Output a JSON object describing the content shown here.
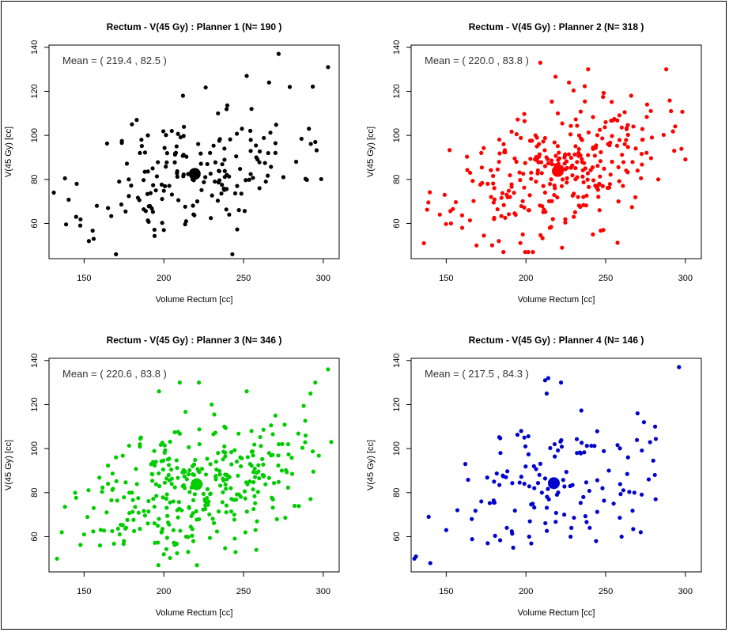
{
  "chart_data": [
    {
      "type": "scatter",
      "title": "Rectum - V(45 Gy) : Planner  1  (N= 190 )",
      "xlabel": "Volume Rectum [cc]",
      "ylabel": "V(45 Gy) [cc]",
      "xlim": [
        128,
        310
      ],
      "ylim": [
        44,
        141
      ],
      "xticks": [
        150,
        200,
        250,
        300
      ],
      "yticks": [
        60,
        80,
        100,
        120,
        140
      ],
      "grid": false,
      "color": "#000000",
      "mean_label": "Mean = ( 219.4  ,  82.5 )",
      "mean": [
        219.4,
        82.5
      ],
      "seed": 11,
      "n_points": 190,
      "points": [
        [
          131,
          74
        ],
        [
          145,
          63
        ],
        [
          153,
          52
        ],
        [
          156,
          53
        ],
        [
          158,
          68
        ],
        [
          165,
          67
        ],
        [
          170,
          46
        ],
        [
          172,
          79
        ],
        [
          178,
          80
        ],
        [
          180,
          105
        ],
        [
          183,
          107
        ],
        [
          185,
          92
        ],
        [
          190,
          100
        ],
        [
          193,
          85
        ],
        [
          195,
          75
        ],
        [
          200,
          57
        ],
        [
          205,
          102
        ],
        [
          208,
          95
        ],
        [
          212,
          118
        ],
        [
          214,
          61
        ],
        [
          218,
          80
        ],
        [
          221,
          70
        ],
        [
          226,
          81
        ],
        [
          229,
          92
        ],
        [
          232,
          79
        ],
        [
          234,
          110
        ],
        [
          238,
          94
        ],
        [
          241,
          64
        ],
        [
          243,
          46
        ],
        [
          246,
          77
        ],
        [
          249,
          103
        ],
        [
          252,
          127
        ],
        [
          255,
          112
        ],
        [
          258,
          90
        ],
        [
          260,
          76
        ],
        [
          264,
          79
        ],
        [
          266,
          124
        ],
        [
          270,
          92
        ],
        [
          272,
          137
        ],
        [
          275,
          81
        ],
        [
          279,
          122
        ],
        [
          283,
          88
        ],
        [
          291,
          103
        ],
        [
          295,
          97
        ],
        [
          303,
          131
        ]
      ]
    },
    {
      "type": "scatter",
      "title": "Rectum - V(45 Gy) : Planner  2  (N= 318 )",
      "xlabel": "Volume Rectum [cc]",
      "ylabel": "V(45 Gy) [cc]",
      "xlim": [
        128,
        310
      ],
      "ylim": [
        44,
        141
      ],
      "xticks": [
        150,
        200,
        250,
        300
      ],
      "yticks": [
        60,
        80,
        100,
        120,
        140
      ],
      "grid": false,
      "color": "#ff0000",
      "mean_label": "Mean = ( 220.0  ,  83.8 )",
      "mean": [
        220.0,
        83.8
      ],
      "seed": 23,
      "n_points": 318,
      "points": [
        [
          136,
          51
        ],
        [
          146,
          64
        ],
        [
          149,
          73
        ],
        [
          153,
          60
        ],
        [
          160,
          58
        ],
        [
          165,
          83
        ],
        [
          169,
          50
        ],
        [
          172,
          92
        ],
        [
          176,
          78
        ],
        [
          180,
          62
        ],
        [
          183,
          52
        ],
        [
          186,
          96
        ],
        [
          190,
          72
        ],
        [
          194,
          88
        ],
        [
          198,
          55
        ],
        [
          202,
          66
        ],
        [
          206,
          100
        ],
        [
          209,
          133
        ],
        [
          212,
          74
        ],
        [
          215,
          58
        ],
        [
          220,
          110
        ],
        [
          223,
          80
        ],
        [
          227,
          124
        ],
        [
          230,
          63
        ],
        [
          233,
          92
        ],
        [
          236,
          72
        ],
        [
          239,
          130
        ],
        [
          242,
          55
        ],
        [
          246,
          78
        ],
        [
          250,
          106
        ],
        [
          254,
          88
        ],
        [
          258,
          70
        ],
        [
          262,
          96
        ],
        [
          266,
          118
        ],
        [
          270,
          84
        ],
        [
          273,
          98
        ],
        [
          276,
          114
        ],
        [
          279,
          99
        ],
        [
          283,
          80
        ],
        [
          288,
          130
        ],
        [
          291,
          111
        ],
        [
          293,
          93
        ]
      ]
    },
    {
      "type": "scatter",
      "title": "Rectum - V(45 Gy) : Planner  3  (N= 346 )",
      "xlabel": "Volume Rectum [cc]",
      "ylabel": "V(45 Gy) [cc]",
      "xlim": [
        128,
        310
      ],
      "ylim": [
        44,
        141
      ],
      "xticks": [
        150,
        200,
        250,
        300
      ],
      "yticks": [
        60,
        80,
        100,
        120,
        140
      ],
      "grid": false,
      "color": "#00cc00",
      "mean_label": "Mean = ( 220.6  ,  83.8 )",
      "mean": [
        220.6,
        83.8
      ],
      "seed": 37,
      "n_points": 346,
      "points": [
        [
          133,
          50
        ],
        [
          136,
          62
        ],
        [
          150,
          61
        ],
        [
          156,
          73
        ],
        [
          160,
          56
        ],
        [
          165,
          84
        ],
        [
          170,
          96
        ],
        [
          175,
          58
        ],
        [
          180,
          80
        ],
        [
          185,
          102
        ],
        [
          190,
          66
        ],
        [
          195,
          94
        ],
        [
          197,
          126
        ],
        [
          200,
          52
        ],
        [
          203,
          88
        ],
        [
          206,
          76
        ],
        [
          210,
          130
        ],
        [
          214,
          60
        ],
        [
          218,
          92
        ],
        [
          222,
          130
        ],
        [
          226,
          76
        ],
        [
          230,
          120
        ],
        [
          234,
          98
        ],
        [
          238,
          110
        ],
        [
          242,
          82
        ],
        [
          245,
          53
        ],
        [
          248,
          96
        ],
        [
          252,
          126
        ],
        [
          255,
          108
        ],
        [
          258,
          54
        ],
        [
          262,
          88
        ],
        [
          266,
          98
        ],
        [
          270,
          115
        ],
        [
          274,
          90
        ],
        [
          278,
          102
        ],
        [
          282,
          74
        ],
        [
          292,
          125
        ],
        [
          295,
          130
        ],
        [
          303,
          136
        ],
        [
          305,
          103
        ]
      ]
    },
    {
      "type": "scatter",
      "title": "Rectum - V(45 Gy) : Planner  4  (N= 146 )",
      "xlabel": "Volume Rectum [cc]",
      "ylabel": "V(45 Gy) [cc]",
      "xlim": [
        128,
        310
      ],
      "ylim": [
        44,
        141
      ],
      "xticks": [
        150,
        200,
        250,
        300
      ],
      "yticks": [
        60,
        80,
        100,
        120,
        140
      ],
      "grid": false,
      "color": "#0000cc",
      "mean_label": "Mean = ( 217.5  ,  84.3 )",
      "mean": [
        217.5,
        84.3
      ],
      "seed": 51,
      "n_points": 146,
      "points": [
        [
          130,
          50
        ],
        [
          131,
          51
        ],
        [
          139,
          69
        ],
        [
          140,
          48
        ],
        [
          150,
          63
        ],
        [
          157,
          72
        ],
        [
          162,
          93
        ],
        [
          166,
          68
        ],
        [
          172,
          76
        ],
        [
          176,
          57
        ],
        [
          180,
          85
        ],
        [
          184,
          98
        ],
        [
          188,
          64
        ],
        [
          192,
          55
        ],
        [
          197,
          108
        ],
        [
          199,
          84
        ],
        [
          202,
          60
        ],
        [
          205,
          92
        ],
        [
          210,
          80
        ],
        [
          212,
          131
        ],
        [
          213,
          125
        ],
        [
          214,
          132
        ],
        [
          218,
          102
        ],
        [
          222,
          130
        ],
        [
          224,
          70
        ],
        [
          228,
          60
        ],
        [
          232,
          98
        ],
        [
          236,
          78
        ],
        [
          240,
          64
        ],
        [
          244,
          58
        ],
        [
          248,
          82
        ],
        [
          252,
          90
        ],
        [
          255,
          75
        ],
        [
          260,
          60
        ],
        [
          264,
          96
        ],
        [
          268,
          80
        ],
        [
          270,
          116
        ],
        [
          272,
          62
        ],
        [
          274,
          112
        ],
        [
          277,
          86
        ],
        [
          281,
          110
        ],
        [
          296,
          137
        ]
      ]
    }
  ]
}
